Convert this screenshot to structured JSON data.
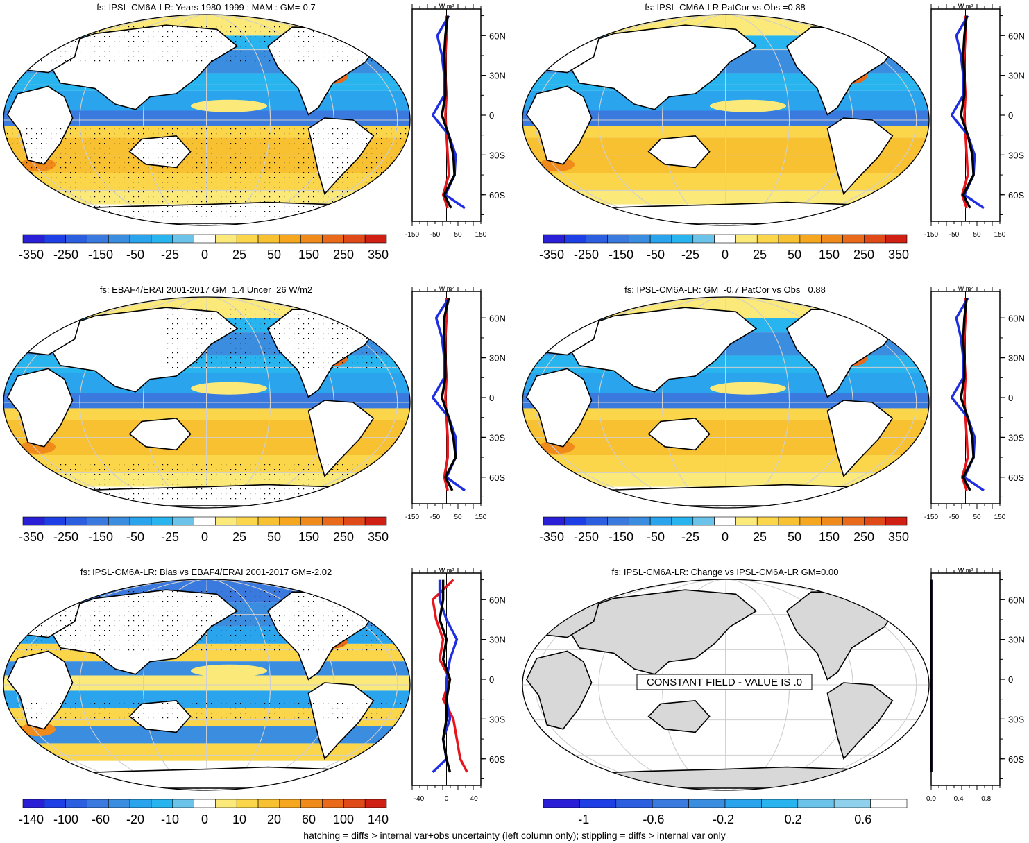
{
  "footnote": "hatching = diffs > internal var+obs uncertainty (left column only); stippling = diffs > internal var only",
  "units": "W m²",
  "colors": {
    "neg": [
      "#2a1fd6",
      "#1f3fe6",
      "#2b5fe0",
      "#3a79de",
      "#3b8de0",
      "#2aa4ec",
      "#28b4ee",
      "#6cc3ea",
      "#ffffff"
    ],
    "pos": [
      "#ffffff",
      "#fbe97a",
      "#fbd64a",
      "#f7c132",
      "#f5a720",
      "#f08a1b",
      "#e86a1a",
      "#e04a18",
      "#d02014"
    ],
    "land": "#d8d8d8",
    "lat_black": "#000000",
    "lat_blue": "#1f2fe0",
    "lat_red": "#e8151a"
  },
  "charts": [
    {
      "id": "p1",
      "title": "fs: IPSL-CM6A-LR: Years 1980-1999 : MAM : GM=-0.7",
      "type": "map-with-zonal-profile",
      "colorbar": [
        "-350",
        "-250",
        "-150",
        "-50",
        "-25",
        "0",
        "25",
        "50",
        "150",
        "250",
        "350"
      ],
      "profile_xticks": [
        "-150",
        "-50",
        "50",
        "150"
      ],
      "lat_ticks": [
        "60N",
        "30N",
        "0",
        "30S",
        "60S"
      ],
      "stippled": true
    },
    {
      "id": "p2",
      "title": "fs: IPSL-CM6A-LR PatCor vs Obs =0.88",
      "type": "map-with-zonal-profile",
      "colorbar": [
        "-350",
        "-250",
        "-150",
        "-50",
        "-25",
        "0",
        "25",
        "50",
        "150",
        "250",
        "350"
      ],
      "profile_xticks": [
        "-150",
        "-50",
        "50",
        "150"
      ],
      "lat_ticks": [
        "60N",
        "30N",
        "0",
        "30S",
        "60S"
      ],
      "stippled": false
    },
    {
      "id": "p3",
      "title": "fs: EBAF4/ERAI 2001-2017 GM=1.4 Uncer=26 W/m2",
      "type": "map-with-zonal-profile",
      "colorbar": [
        "-350",
        "-250",
        "-150",
        "-50",
        "-25",
        "0",
        "25",
        "50",
        "150",
        "250",
        "350"
      ],
      "profile_xticks": [
        "-150",
        "-50",
        "50",
        "150"
      ],
      "lat_ticks": [
        "60N",
        "30N",
        "0",
        "30S",
        "60S"
      ],
      "stippled": true
    },
    {
      "id": "p4",
      "title": "fs: IPSL-CM6A-LR: GM=-0.7 PatCor vs Obs =0.88",
      "type": "map-with-zonal-profile",
      "colorbar": [
        "-350",
        "-250",
        "-150",
        "-50",
        "-25",
        "0",
        "25",
        "50",
        "150",
        "250",
        "350"
      ],
      "profile_xticks": [
        "-150",
        "-50",
        "50",
        "150"
      ],
      "lat_ticks": [
        "60N",
        "30N",
        "0",
        "30S",
        "60S"
      ],
      "stippled": false
    },
    {
      "id": "p5",
      "title": "fs: IPSL-CM6A-LR: Bias vs EBAF4/ERAI 2001-2017 GM=-2.02",
      "type": "map-with-zonal-profile",
      "colorbar": [
        "-140",
        "-100",
        "-60",
        "-20",
        "-10",
        "0",
        "10",
        "20",
        "60",
        "100",
        "140"
      ],
      "profile_xticks": [
        "-40",
        "0",
        "40"
      ],
      "lat_ticks": [
        "60N",
        "30N",
        "0",
        "30S",
        "60S"
      ],
      "stippled": true
    },
    {
      "id": "p6",
      "title": "fs: IPSL-CM6A-LR: Change vs IPSL-CM6A-LR GM=0.00",
      "type": "map-with-zonal-profile",
      "constant_label": "CONSTANT FIELD - VALUE IS .0",
      "colorbar": [
        "-1",
        "-0.6",
        "-0.2",
        "0.2",
        "0.6"
      ],
      "profile_xticks": [
        "0.0",
        "0.4",
        "0.8"
      ],
      "lat_ticks": [
        "60N",
        "30N",
        "0",
        "30S",
        "60S"
      ],
      "stippled": false
    }
  ],
  "chart_data": [
    {
      "type": "contour-map",
      "title": "fs: IPSL-CM6A-LR: Years 1980-1999 : MAM : GM=-0.7",
      "colorbar_levels": [
        -350,
        -250,
        -150,
        -50,
        -25,
        0,
        25,
        50,
        150,
        250,
        350
      ],
      "zonal_profile": {
        "xlim": [
          -150,
          150
        ],
        "lat": [
          75,
          60,
          45,
          30,
          15,
          0,
          -15,
          -30,
          -45,
          -60,
          -70
        ],
        "black": [
          5,
          -5,
          -10,
          -5,
          -5,
          -20,
          10,
          30,
          35,
          -10,
          20
        ],
        "blue": [
          10,
          -40,
          -20,
          -10,
          -10,
          -60,
          10,
          40,
          35,
          -5,
          80
        ],
        "red": [
          0,
          0,
          -5,
          -5,
          0,
          -5,
          0,
          5,
          10,
          -15,
          5
        ]
      }
    },
    {
      "type": "contour-map",
      "title": "fs: IPSL-CM6A-LR PatCor vs Obs =0.88",
      "colorbar_levels": [
        -350,
        -250,
        -150,
        -50,
        -25,
        0,
        25,
        50,
        150,
        250,
        350
      ],
      "zonal_profile": {
        "xlim": [
          -150,
          150
        ],
        "lat": [
          75,
          60,
          45,
          30,
          15,
          0,
          -15,
          -30,
          -45,
          -60,
          -70
        ],
        "black": [
          5,
          -5,
          -10,
          -5,
          -5,
          -20,
          10,
          30,
          35,
          -10,
          20
        ],
        "blue": [
          10,
          -40,
          -20,
          -10,
          -10,
          -60,
          10,
          40,
          35,
          -5,
          80
        ],
        "red": [
          0,
          0,
          -5,
          -5,
          0,
          -5,
          0,
          5,
          10,
          -15,
          5
        ]
      }
    },
    {
      "type": "contour-map",
      "title": "fs: EBAF4/ERAI 2001-2017 GM=1.4 Uncer=26 W/m2",
      "colorbar_levels": [
        -350,
        -250,
        -150,
        -50,
        -25,
        0,
        25,
        50,
        150,
        250,
        350
      ],
      "zonal_profile": {
        "xlim": [
          -150,
          150
        ],
        "lat": [
          75,
          60,
          45,
          30,
          15,
          0,
          -15,
          -30,
          -45,
          -60,
          -70
        ],
        "black": [
          10,
          -10,
          -10,
          -5,
          -5,
          -20,
          10,
          30,
          40,
          -5,
          25
        ],
        "blue": [
          10,
          -45,
          -20,
          -10,
          -10,
          -60,
          10,
          40,
          40,
          0,
          80
        ],
        "red": [
          0,
          0,
          -5,
          -5,
          0,
          -5,
          0,
          5,
          5,
          -10,
          5
        ]
      }
    },
    {
      "type": "contour-map",
      "title": "fs: IPSL-CM6A-LR: GM=-0.7 PatCor vs Obs =0.88",
      "colorbar_levels": [
        -350,
        -250,
        -150,
        -50,
        -25,
        0,
        25,
        50,
        150,
        250,
        350
      ],
      "zonal_profile": {
        "xlim": [
          -150,
          150
        ],
        "lat": [
          75,
          60,
          45,
          30,
          15,
          0,
          -15,
          -30,
          -45,
          -60,
          -70
        ],
        "black": [
          5,
          -5,
          -10,
          -5,
          -5,
          -20,
          10,
          30,
          35,
          -10,
          20
        ],
        "blue": [
          10,
          -40,
          -20,
          -10,
          -10,
          -60,
          10,
          40,
          35,
          -5,
          80
        ],
        "red": [
          0,
          0,
          -5,
          -5,
          0,
          -5,
          0,
          5,
          10,
          -15,
          5
        ]
      }
    },
    {
      "type": "contour-map",
      "title": "fs: IPSL-CM6A-LR: Bias vs EBAF4/ERAI 2001-2017 GM=-2.02",
      "colorbar_levels": [
        -140,
        -100,
        -60,
        -20,
        -10,
        0,
        10,
        20,
        60,
        100,
        140
      ],
      "zonal_profile": {
        "xlim": [
          -50,
          50
        ],
        "lat": [
          75,
          60,
          45,
          30,
          15,
          0,
          -15,
          -30,
          -45,
          -60,
          -70
        ],
        "black": [
          -5,
          -5,
          -10,
          0,
          -5,
          5,
          0,
          0,
          -5,
          0,
          5
        ],
        "blue": [
          -10,
          -10,
          0,
          15,
          5,
          0,
          0,
          5,
          -5,
          0,
          -20
        ],
        "red": [
          10,
          -20,
          -15,
          -5,
          -10,
          5,
          -5,
          10,
          15,
          20,
          30
        ]
      }
    },
    {
      "type": "contour-map",
      "title": "fs: IPSL-CM6A-LR: Change vs IPSL-CM6A-LR GM=0.00",
      "annotation": "CONSTANT FIELD - VALUE IS .0",
      "colorbar_levels": [
        -1,
        -0.6,
        -0.2,
        0.2,
        0.6
      ],
      "zonal_profile": {
        "xlim": [
          0,
          1
        ],
        "lat": [
          75,
          60,
          45,
          30,
          15,
          0,
          -15,
          -30,
          -45,
          -60,
          -70
        ],
        "black": [
          0,
          0,
          0,
          0,
          0,
          0,
          0,
          0,
          0,
          0,
          0
        ],
        "blue": [
          0,
          0,
          0,
          0,
          0,
          0,
          0,
          0,
          0,
          0,
          0
        ],
        "red": [
          0,
          0,
          0,
          0,
          0,
          0,
          0,
          0,
          0,
          0,
          0
        ]
      }
    }
  ]
}
